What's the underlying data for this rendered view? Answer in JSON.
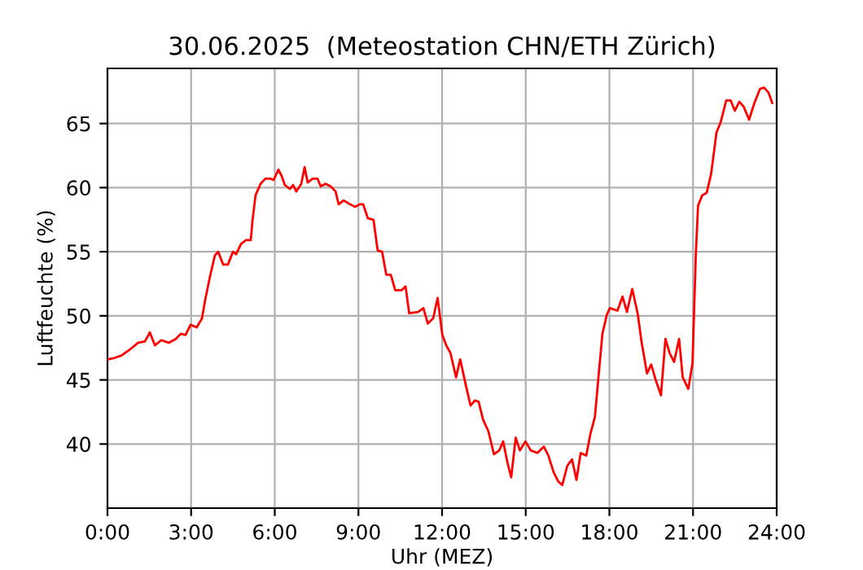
{
  "chart_data": {
    "type": "line",
    "title": "30.06.2025  (Meteostation CHN/ETH Zürich)",
    "xlabel": "Uhr (MEZ)",
    "ylabel": "Luftfeuchte (%)",
    "x": [
      0,
      0.23,
      0.5,
      0.82,
      1.1,
      1.34,
      1.52,
      1.7,
      1.93,
      2.2,
      2.45,
      2.63,
      2.8,
      2.98,
      3.2,
      3.39,
      3.5,
      3.68,
      3.85,
      3.97,
      4.15,
      4.32,
      4.5,
      4.61,
      4.79,
      4.96,
      5.14,
      5.2,
      5.31,
      5.49,
      5.66,
      5.84,
      5.96,
      6.13,
      6.25,
      6.36,
      6.54,
      6.66,
      6.77,
      6.95,
      7.07,
      7.18,
      7.36,
      7.53,
      7.65,
      7.82,
      8.0,
      8.18,
      8.29,
      8.47,
      8.7,
      8.88,
      9.05,
      9.17,
      9.34,
      9.54,
      9.69,
      9.85,
      10.0,
      10.16,
      10.32,
      10.55,
      10.69,
      10.82,
      11.14,
      11.33,
      11.49,
      11.68,
      11.84,
      12.01,
      12.15,
      12.3,
      12.5,
      12.65,
      12.85,
      13.02,
      13.18,
      13.31,
      13.47,
      13.66,
      13.86,
      14.05,
      14.19,
      14.35,
      14.48,
      14.64,
      14.79,
      14.99,
      15.18,
      15.42,
      15.65,
      15.81,
      16.0,
      16.16,
      16.31,
      16.49,
      16.66,
      16.82,
      16.97,
      17.17,
      17.32,
      17.48,
      17.62,
      17.75,
      17.91,
      18.02,
      18.29,
      18.47,
      18.63,
      18.82,
      19.02,
      19.15,
      19.35,
      19.5,
      19.66,
      19.85,
      20.01,
      20.16,
      20.32,
      20.5,
      20.63,
      20.83,
      20.98,
      21.1,
      21.18,
      21.33,
      21.49,
      21.65,
      21.84,
      21.99,
      22.19,
      22.35,
      22.5,
      22.66,
      22.82,
      23.01,
      23.2,
      23.4,
      23.55,
      23.71,
      23.84
    ],
    "series": [
      {
        "color": "#ff0000",
        "values": [
          46.6,
          46.7,
          46.9,
          47.4,
          47.9,
          48.0,
          48.7,
          47.7,
          48.1,
          47.9,
          48.2,
          48.6,
          48.5,
          49.3,
          49.1,
          49.8,
          51.2,
          53.1,
          54.7,
          55.0,
          54.0,
          54.0,
          55.0,
          54.8,
          55.6,
          55.9,
          55.9,
          57.4,
          59.4,
          60.3,
          60.7,
          60.7,
          60.6,
          61.4,
          60.9,
          60.2,
          59.9,
          60.2,
          59.7,
          60.3,
          61.6,
          60.4,
          60.7,
          60.7,
          60.1,
          60.3,
          60.1,
          59.7,
          58.7,
          59.0,
          58.7,
          58.5,
          58.7,
          58.7,
          57.6,
          57.5,
          55.1,
          55.0,
          53.2,
          53.2,
          52.0,
          52.0,
          52.3,
          50.2,
          50.3,
          50.6,
          49.4,
          49.8,
          51.4,
          48.5,
          47.7,
          47.1,
          45.2,
          46.6,
          44.6,
          43.0,
          43.4,
          43.3,
          41.9,
          41.0,
          39.2,
          39.5,
          40.2,
          38.5,
          37.4,
          40.5,
          39.5,
          40.2,
          39.5,
          39.3,
          39.8,
          39.1,
          37.8,
          37.1,
          36.8,
          38.3,
          38.8,
          37.2,
          39.3,
          39.1,
          40.8,
          42.1,
          45.5,
          48.6,
          50.1,
          50.6,
          50.4,
          51.5,
          50.3,
          52.1,
          50.1,
          48.0,
          45.5,
          46.2,
          45.0,
          43.8,
          48.2,
          47.1,
          46.4,
          48.2,
          45.2,
          44.3,
          46.3,
          54.8,
          58.6,
          59.4,
          59.6,
          61.1,
          64.3,
          65.1,
          66.8,
          66.8,
          66.0,
          66.7,
          66.3,
          65.3,
          66.6,
          67.7,
          67.8,
          67.4,
          66.6
        ]
      }
    ],
    "xlim": [
      0,
      24
    ],
    "xticks": [
      {
        "value": 0,
        "label": "0:00"
      },
      {
        "value": 3,
        "label": "3:00"
      },
      {
        "value": 6,
        "label": "6:00"
      },
      {
        "value": 9,
        "label": "9:00"
      },
      {
        "value": 12,
        "label": "12:00"
      },
      {
        "value": 15,
        "label": "15:00"
      },
      {
        "value": 18,
        "label": "18:00"
      },
      {
        "value": 21,
        "label": "21:00"
      },
      {
        "value": 24,
        "label": "24:00"
      }
    ],
    "ylim": [
      35,
      69.3
    ],
    "yticks": [
      40,
      45,
      50,
      55,
      60,
      65
    ],
    "grid": true,
    "marker": "none",
    "line_style": "solid"
  }
}
